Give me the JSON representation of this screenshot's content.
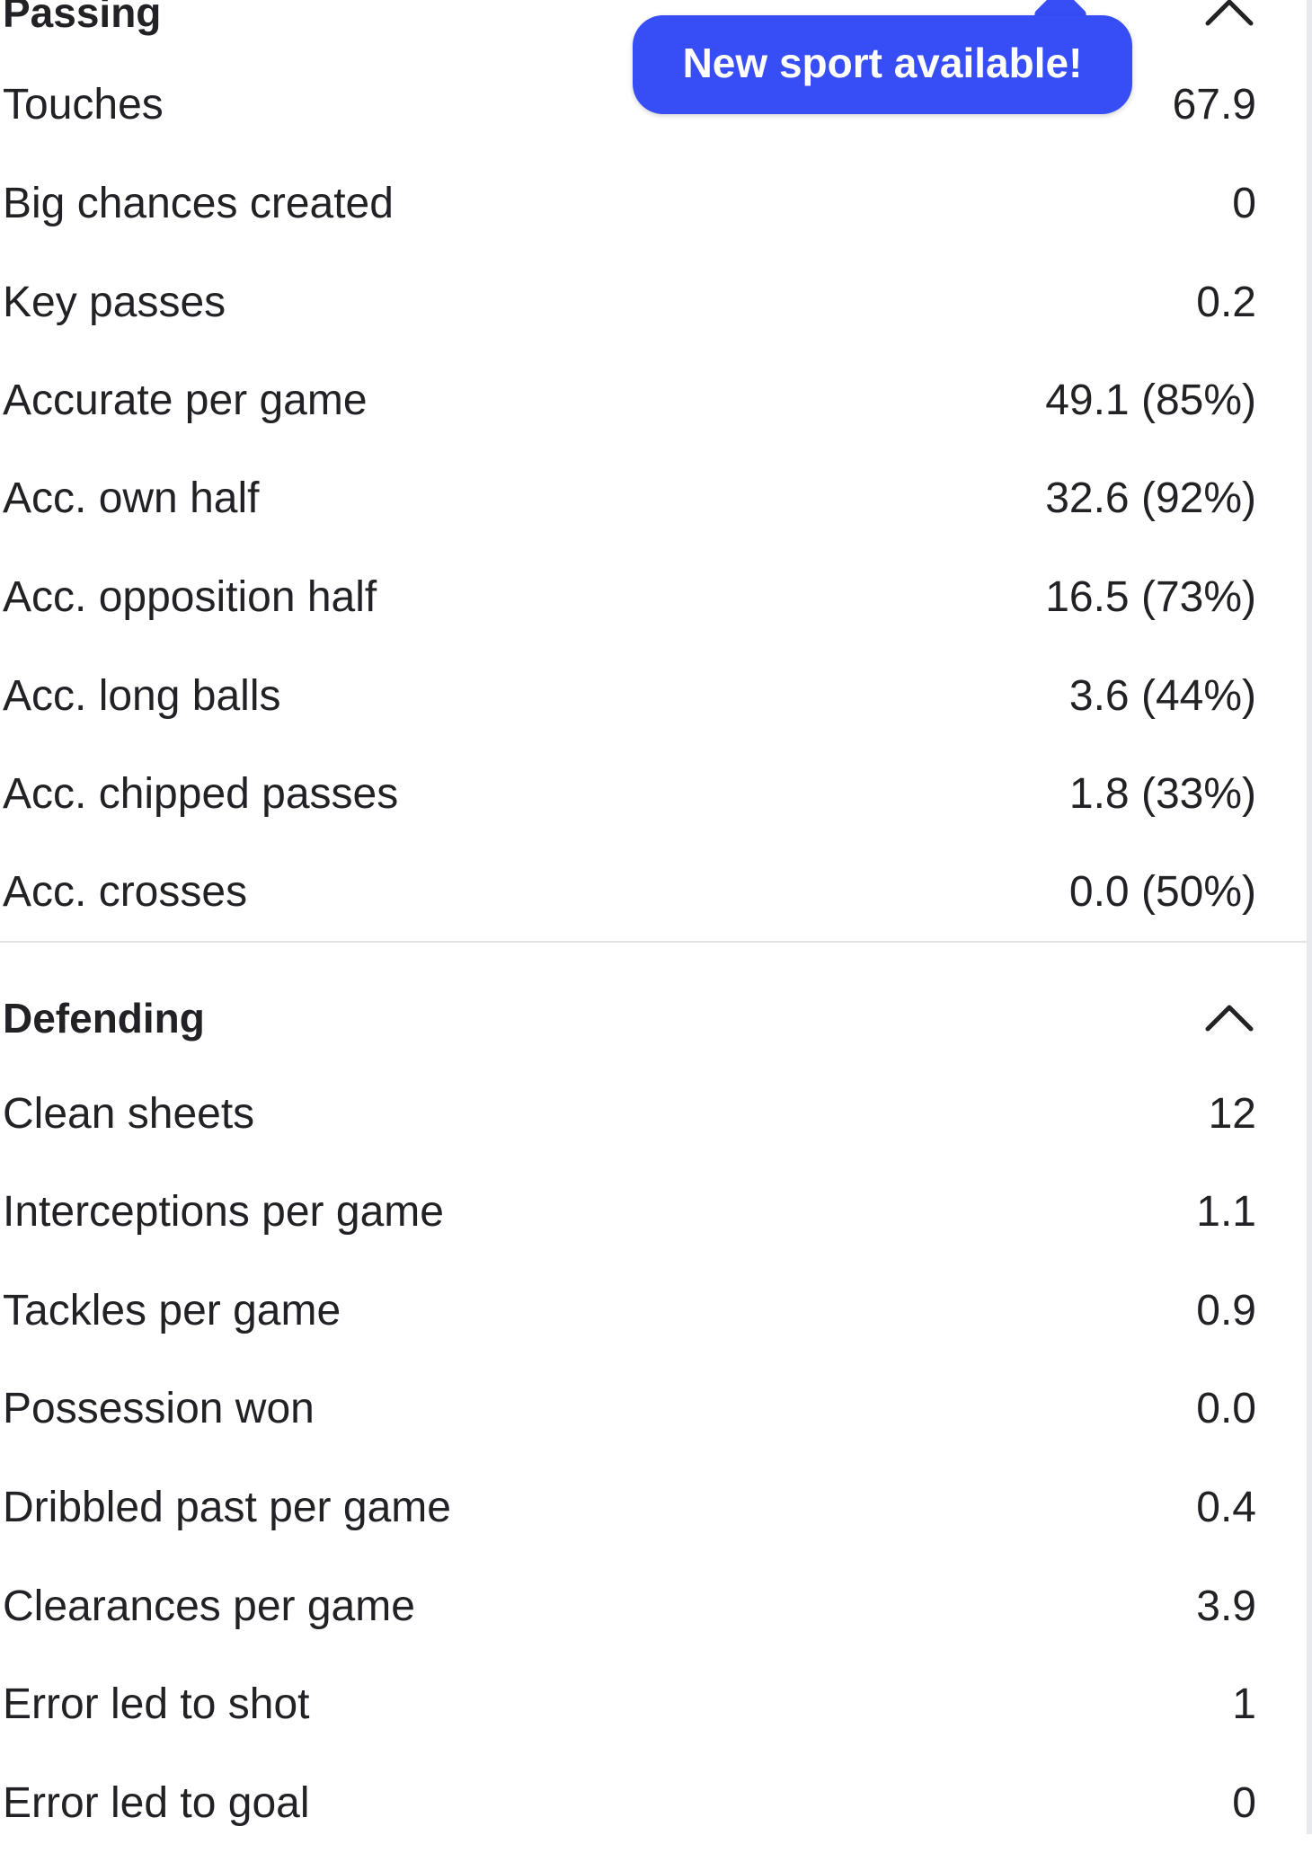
{
  "passing": {
    "title": "Passing",
    "rows": [
      {
        "label": "Touches",
        "value": "67.9"
      },
      {
        "label": "Big chances created",
        "value": "0"
      },
      {
        "label": "Key passes",
        "value": "0.2"
      },
      {
        "label": "Accurate per game",
        "value": "49.1 (85%)"
      },
      {
        "label": "Acc. own half",
        "value": "32.6 (92%)"
      },
      {
        "label": "Acc. opposition half",
        "value": "16.5 (73%)"
      },
      {
        "label": "Acc. long balls",
        "value": "3.6 (44%)"
      },
      {
        "label": "Acc. chipped passes",
        "value": "1.8 (33%)"
      },
      {
        "label": "Acc. crosses",
        "value": "0.0 (50%)"
      }
    ]
  },
  "defending": {
    "title": "Defending",
    "rows": [
      {
        "label": "Clean sheets",
        "value": "12"
      },
      {
        "label": "Interceptions per game",
        "value": "1.1"
      },
      {
        "label": "Tackles per game",
        "value": "0.9"
      },
      {
        "label": "Possession won",
        "value": "0.0"
      },
      {
        "label": "Dribbled past per game",
        "value": "0.4"
      },
      {
        "label": "Clearances per game",
        "value": "3.9"
      },
      {
        "label": "Error led to shot",
        "value": "1"
      },
      {
        "label": "Error led to goal",
        "value": "0"
      }
    ]
  },
  "tooltip": {
    "text": "New sport available!"
  },
  "icons": {
    "collapse": "chevron-up-icon"
  },
  "colors": {
    "tooltip_bg": "#374df5",
    "tooltip_text": "#ffffff",
    "text": "#222226",
    "divider": "#dfe2e7"
  }
}
